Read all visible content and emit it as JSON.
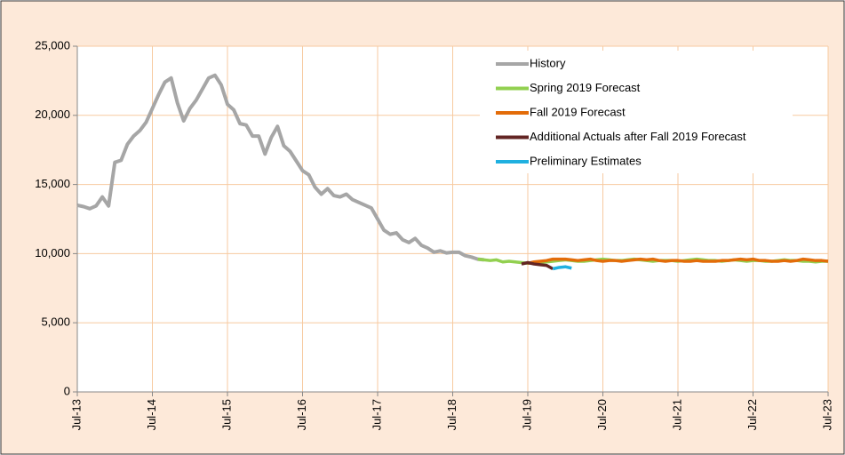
{
  "chart_data": {
    "type": "line",
    "x": [
      "2013-07",
      "2013-08",
      "2013-09",
      "2013-10",
      "2013-11",
      "2013-12",
      "2014-01",
      "2014-02",
      "2014-03",
      "2014-04",
      "2014-05",
      "2014-06",
      "2014-07",
      "2014-08",
      "2014-09",
      "2014-10",
      "2014-11",
      "2014-12",
      "2015-01",
      "2015-02",
      "2015-03",
      "2015-04",
      "2015-05",
      "2015-06",
      "2015-07",
      "2015-08",
      "2015-09",
      "2015-10",
      "2015-11",
      "2015-12",
      "2016-01",
      "2016-02",
      "2016-03",
      "2016-04",
      "2016-05",
      "2016-06",
      "2016-07",
      "2016-08",
      "2016-09",
      "2016-10",
      "2016-11",
      "2016-12",
      "2017-01",
      "2017-02",
      "2017-03",
      "2017-04",
      "2017-05",
      "2017-06",
      "2017-07",
      "2017-08",
      "2017-09",
      "2017-10",
      "2017-11",
      "2017-12",
      "2018-01",
      "2018-02",
      "2018-03",
      "2018-04",
      "2018-05",
      "2018-06",
      "2018-07",
      "2018-08",
      "2018-09",
      "2018-10",
      "2018-11",
      "2018-12",
      "2019-01",
      "2019-02",
      "2019-03",
      "2019-04",
      "2019-05",
      "2019-06",
      "2019-07",
      "2019-08",
      "2019-09",
      "2019-10",
      "2019-11",
      "2019-12",
      "2020-01",
      "2020-02",
      "2020-03",
      "2020-04",
      "2020-05",
      "2020-06",
      "2020-07",
      "2020-08",
      "2020-09",
      "2020-10",
      "2020-11",
      "2020-12",
      "2021-01",
      "2021-02",
      "2021-03",
      "2021-04",
      "2021-05",
      "2021-06",
      "2021-07",
      "2021-08",
      "2021-09",
      "2021-10",
      "2021-11",
      "2021-12",
      "2022-01",
      "2022-02",
      "2022-03",
      "2022-04",
      "2022-05",
      "2022-06",
      "2022-07",
      "2022-08",
      "2022-09",
      "2022-10",
      "2022-11",
      "2022-12",
      "2023-01",
      "2023-02",
      "2023-03",
      "2023-04",
      "2023-05",
      "2023-06",
      "2023-07"
    ],
    "series": [
      {
        "name": "History",
        "color": "#a6a6a6",
        "values": [
          13500,
          13400,
          13250,
          13450,
          14100,
          13450,
          16600,
          16750,
          17900,
          18500,
          18900,
          19500,
          20500,
          21500,
          22400,
          22700,
          20900,
          19600,
          20500,
          21100,
          21900,
          22700,
          22900,
          22200,
          20800,
          20400,
          19400,
          19300,
          18500,
          18500,
          17200,
          18400,
          19200,
          17800,
          17400,
          16700,
          16000,
          15700,
          14800,
          14300,
          14700,
          14200,
          14100,
          14300,
          13900,
          13700,
          13500,
          13300,
          12500,
          11700,
          11400,
          11500,
          11000,
          10800,
          11100,
          10600,
          10400,
          10100,
          10200,
          10050,
          10100,
          10100,
          9850,
          9750,
          9600,
          9550,
          null,
          null,
          null,
          null,
          null,
          null,
          null,
          null,
          null,
          null,
          null,
          null,
          null,
          null,
          null,
          null,
          null,
          null,
          null,
          null,
          null,
          null,
          null,
          null,
          null,
          null,
          null,
          null,
          null,
          null,
          null,
          null,
          null,
          null,
          null,
          null,
          null,
          null,
          null,
          null,
          null,
          null,
          null,
          null,
          null,
          null,
          null,
          null,
          null,
          null,
          null,
          null,
          null,
          null,
          null
        ]
      },
      {
        "name": "Spring 2019 Forecast",
        "color": "#92d050",
        "values": [
          null,
          null,
          null,
          null,
          null,
          null,
          null,
          null,
          null,
          null,
          null,
          null,
          null,
          null,
          null,
          null,
          null,
          null,
          null,
          null,
          null,
          null,
          null,
          null,
          null,
          null,
          null,
          null,
          null,
          null,
          null,
          null,
          null,
          null,
          null,
          null,
          null,
          null,
          null,
          null,
          null,
          null,
          null,
          null,
          null,
          null,
          null,
          null,
          null,
          null,
          null,
          null,
          null,
          null,
          null,
          null,
          null,
          null,
          null,
          null,
          null,
          null,
          null,
          null,
          9600,
          9550,
          9500,
          9550,
          9400,
          9450,
          9400,
          9350,
          9300,
          9350,
          9400,
          9400,
          9450,
          9500,
          9550,
          9500,
          9450,
          9450,
          9500,
          9550,
          9600,
          9550,
          9500,
          9500,
          9550,
          9600,
          9550,
          9500,
          9450,
          9500,
          9500,
          9500,
          9450,
          9500,
          9550,
          9600,
          9550,
          9500,
          9500,
          9450,
          9500,
          9550,
          9500,
          9450,
          9500,
          9500,
          9450,
          9450,
          9500,
          9550,
          9500,
          9500,
          9450,
          9450,
          9400,
          9450,
          9450
        ]
      },
      {
        "name": "Fall 2019 Forecast",
        "color": "#e36c09",
        "values": [
          null,
          null,
          null,
          null,
          null,
          null,
          null,
          null,
          null,
          null,
          null,
          null,
          null,
          null,
          null,
          null,
          null,
          null,
          null,
          null,
          null,
          null,
          null,
          null,
          null,
          null,
          null,
          null,
          null,
          null,
          null,
          null,
          null,
          null,
          null,
          null,
          null,
          null,
          null,
          null,
          null,
          null,
          null,
          null,
          null,
          null,
          null,
          null,
          null,
          null,
          null,
          null,
          null,
          null,
          null,
          null,
          null,
          null,
          null,
          null,
          null,
          null,
          null,
          null,
          null,
          null,
          null,
          null,
          null,
          null,
          null,
          null,
          9300,
          9400,
          9450,
          9500,
          9600,
          9600,
          9600,
          9550,
          9500,
          9550,
          9600,
          9500,
          9450,
          9500,
          9500,
          9450,
          9500,
          9550,
          9600,
          9550,
          9600,
          9500,
          9450,
          9500,
          9500,
          9450,
          9450,
          9500,
          9450,
          9450,
          9450,
          9500,
          9500,
          9550,
          9600,
          9550,
          9600,
          9500,
          9500,
          9450,
          9450,
          9500,
          9450,
          9500,
          9600,
          9550,
          9500,
          9500,
          9450
        ]
      },
      {
        "name": "Additional Actuals after Fall 2019 Forecast",
        "color": "#632523",
        "values": [
          null,
          null,
          null,
          null,
          null,
          null,
          null,
          null,
          null,
          null,
          null,
          null,
          null,
          null,
          null,
          null,
          null,
          null,
          null,
          null,
          null,
          null,
          null,
          null,
          null,
          null,
          null,
          null,
          null,
          null,
          null,
          null,
          null,
          null,
          null,
          null,
          null,
          null,
          null,
          null,
          null,
          null,
          null,
          null,
          null,
          null,
          null,
          null,
          null,
          null,
          null,
          null,
          null,
          null,
          null,
          null,
          null,
          null,
          null,
          null,
          null,
          null,
          null,
          null,
          null,
          null,
          null,
          null,
          null,
          null,
          null,
          9250,
          9350,
          9250,
          9200,
          9150,
          8900,
          null,
          null,
          null,
          null,
          null,
          null,
          null,
          null,
          null,
          null,
          null,
          null,
          null,
          null,
          null,
          null,
          null,
          null,
          null,
          null,
          null,
          null,
          null,
          null,
          null,
          null,
          null,
          null,
          null,
          null,
          null,
          null,
          null,
          null,
          null,
          null,
          null,
          null,
          null,
          null,
          null,
          null,
          null,
          null
        ]
      },
      {
        "name": "Preliminary Estimates",
        "color": "#1fb0e0",
        "values": [
          null,
          null,
          null,
          null,
          null,
          null,
          null,
          null,
          null,
          null,
          null,
          null,
          null,
          null,
          null,
          null,
          null,
          null,
          null,
          null,
          null,
          null,
          null,
          null,
          null,
          null,
          null,
          null,
          null,
          null,
          null,
          null,
          null,
          null,
          null,
          null,
          null,
          null,
          null,
          null,
          null,
          null,
          null,
          null,
          null,
          null,
          null,
          null,
          null,
          null,
          null,
          null,
          null,
          null,
          null,
          null,
          null,
          null,
          null,
          null,
          null,
          null,
          null,
          null,
          null,
          null,
          null,
          null,
          null,
          null,
          null,
          null,
          null,
          null,
          null,
          null,
          8900,
          9000,
          9050,
          8950,
          null,
          null,
          null,
          null,
          null,
          null,
          null,
          null,
          null,
          null,
          null,
          null,
          null,
          null,
          null,
          null,
          null,
          null,
          null,
          null,
          null,
          null,
          null,
          null,
          null,
          null,
          null,
          null,
          null,
          null,
          null,
          null,
          null,
          null,
          null,
          null,
          null,
          null,
          null,
          null,
          null
        ]
      }
    ],
    "xticks": [
      {
        "value": "2013-07",
        "label": "Jul-13"
      },
      {
        "value": "2014-07",
        "label": "Jul-14"
      },
      {
        "value": "2015-07",
        "label": "Jul-15"
      },
      {
        "value": "2016-07",
        "label": "Jul-16"
      },
      {
        "value": "2017-07",
        "label": "Jul-17"
      },
      {
        "value": "2018-07",
        "label": "Jul-18"
      },
      {
        "value": "2019-07",
        "label": "Jul-19"
      },
      {
        "value": "2020-07",
        "label": "Jul-20"
      },
      {
        "value": "2021-07",
        "label": "Jul-21"
      },
      {
        "value": "2022-07",
        "label": "Jul-22"
      },
      {
        "value": "2023-07",
        "label": "Jul-23"
      }
    ],
    "ylim": [
      0,
      25000
    ],
    "yticks": [
      0,
      {
        "value": 5000,
        "label": "5,000"
      },
      {
        "value": 10000,
        "label": "10,000"
      },
      {
        "value": 15000,
        "label": "15,000"
      },
      {
        "value": 20000,
        "label": "20,000"
      },
      {
        "value": 25000,
        "label": "25,000"
      }
    ],
    "grid": true,
    "legend": "upper right"
  }
}
